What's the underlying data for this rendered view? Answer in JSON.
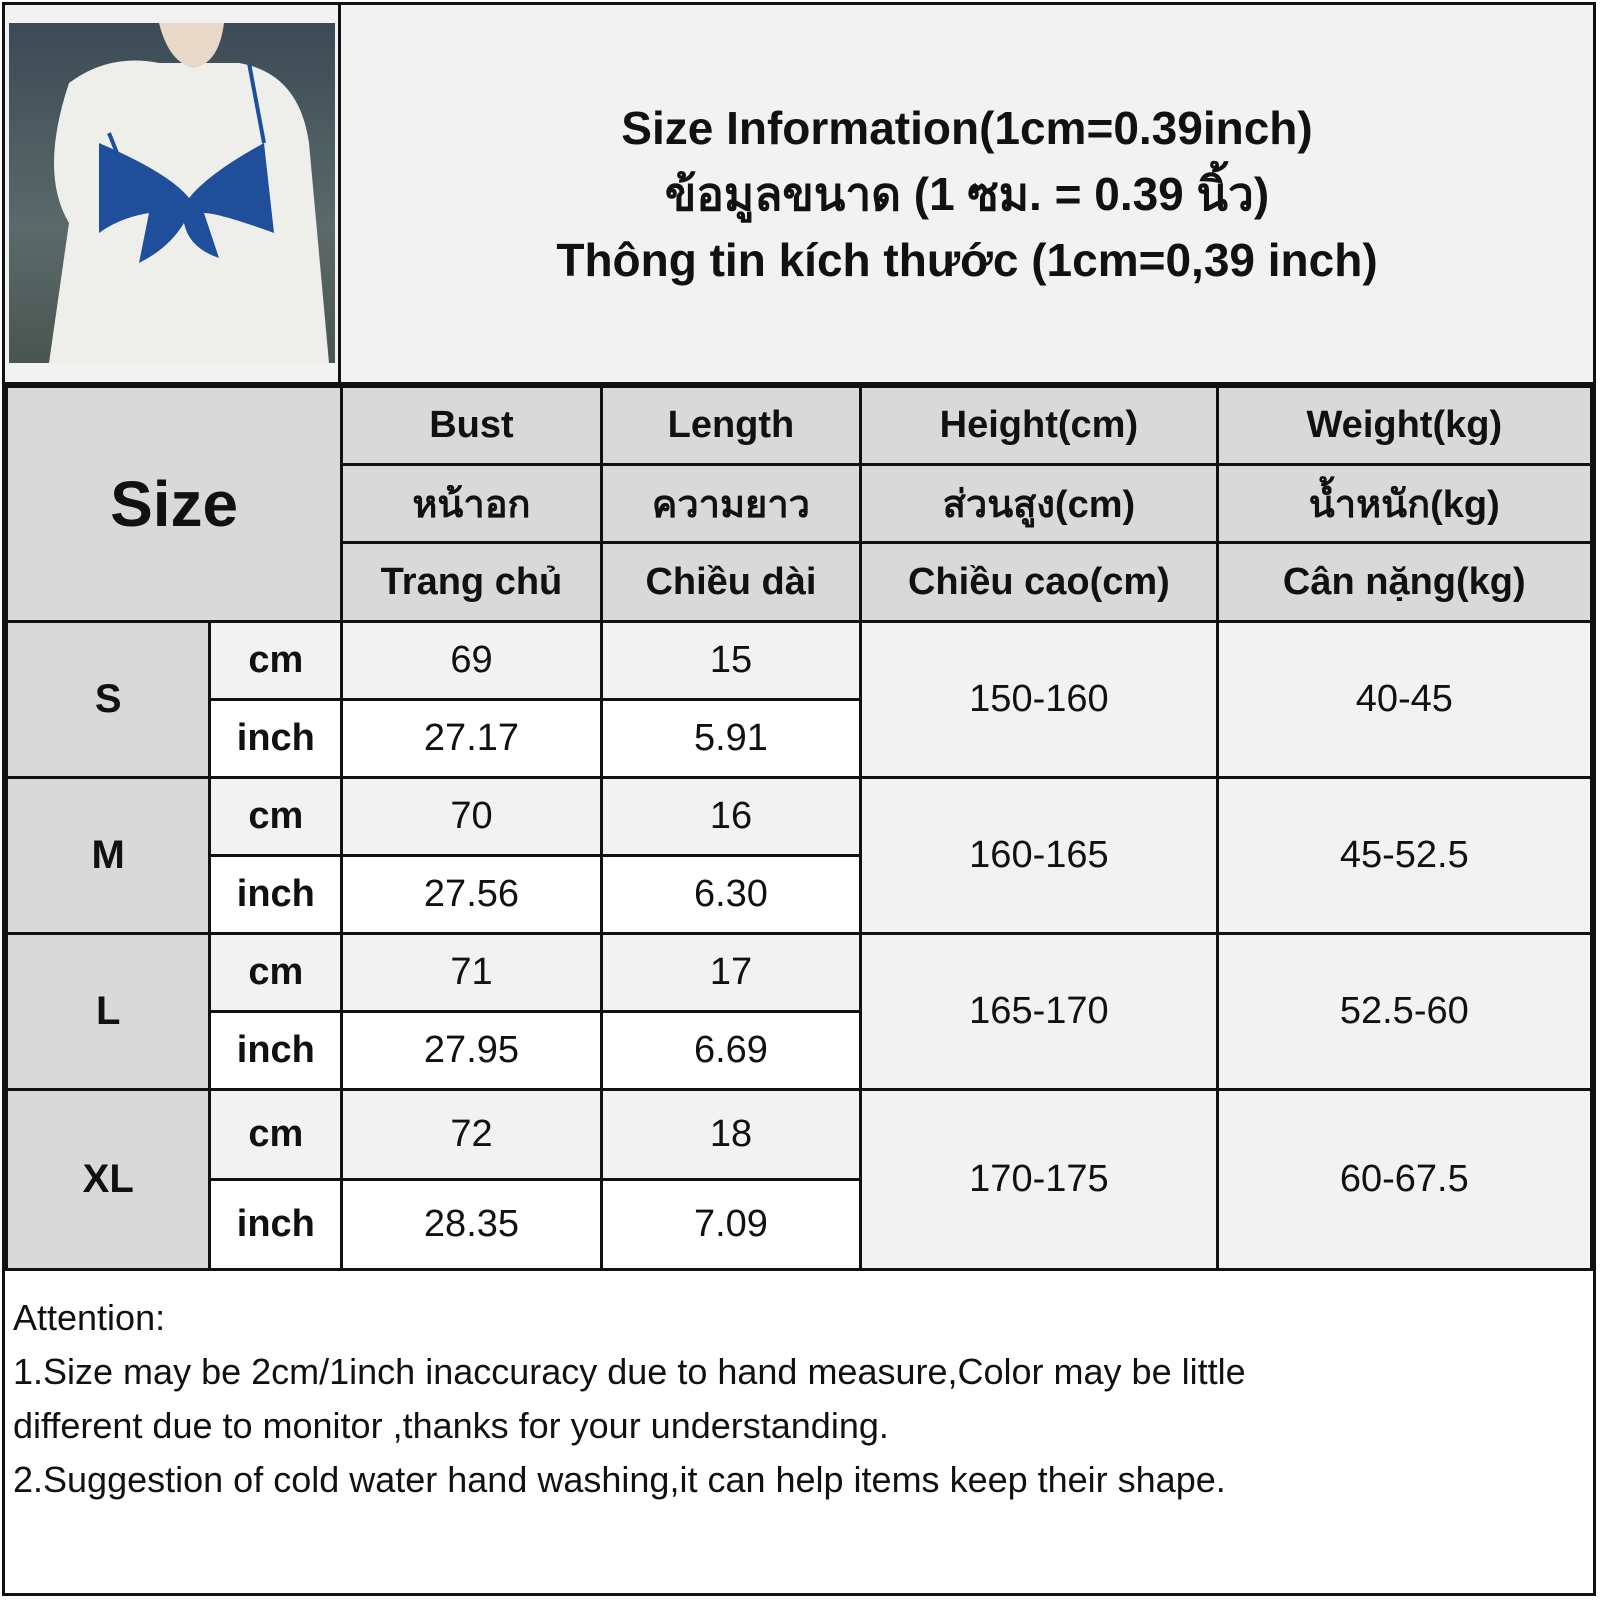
{
  "title": {
    "lines": [
      "Size Information(1cm=0.39inch)",
      "ข้อมูลขนาด (1 ซม. = 0.39 นิ้ว)",
      "Thông tin kích thước (1cm=0,39 inch)"
    ]
  },
  "table": {
    "size_label": "Size",
    "columns": [
      {
        "en": "Bust",
        "th": "หน้าอก",
        "vi": "Trang chủ"
      },
      {
        "en": "Length",
        "th": "ความยาว",
        "vi": "Chiều dài"
      },
      {
        "en": "Height(cm)",
        "th": "ส่วนสูง(cm)",
        "vi": "Chiều cao(cm)"
      },
      {
        "en": "Weight(kg)",
        "th": "น้ำหนัก(kg)",
        "vi": "Cân nặng(kg)"
      }
    ],
    "rows": [
      {
        "size": "S",
        "cm_label": "cm",
        "inch_label": "inch",
        "bust_cm": "69",
        "length_cm": "15",
        "bust_inch": "27.17",
        "length_inch": "5.91",
        "height": "150-160",
        "weight": "40-45"
      },
      {
        "size": "M",
        "cm_label": "cm",
        "inch_label": "inch",
        "bust_cm": "70",
        "length_cm": "16",
        "bust_inch": "27.56",
        "length_inch": "6.30",
        "height": "160-165",
        "weight": "45-52.5"
      },
      {
        "size": "L",
        "cm_label": "cm",
        "inch_label": "inch",
        "bust_cm": "71",
        "length_cm": "17",
        "bust_inch": "27.95",
        "length_inch": "6.69",
        "height": "165-170",
        "weight": "52.5-60"
      },
      {
        "size": "XL",
        "cm_label": "cm",
        "inch_label": "inch",
        "bust_cm": "72",
        "length_cm": "18",
        "bust_inch": "28.35",
        "length_inch": "7.09",
        "height": "170-175",
        "weight": "60-67.5"
      }
    ]
  },
  "notes": {
    "heading": "Attention:",
    "lines": [
      "1.Size may be 2cm/1inch inaccuracy due to hand measure,Color may be little",
      "different due to monitor ,thanks for your understanding.",
      "2.Suggestion of cold water hand washing,it can help items keep their shape."
    ]
  },
  "colors": {
    "header_gray": "#d9d9d9",
    "cell_light": "#f2f2f2",
    "border": "#111111",
    "bow_blue": "#1f4f9a"
  }
}
